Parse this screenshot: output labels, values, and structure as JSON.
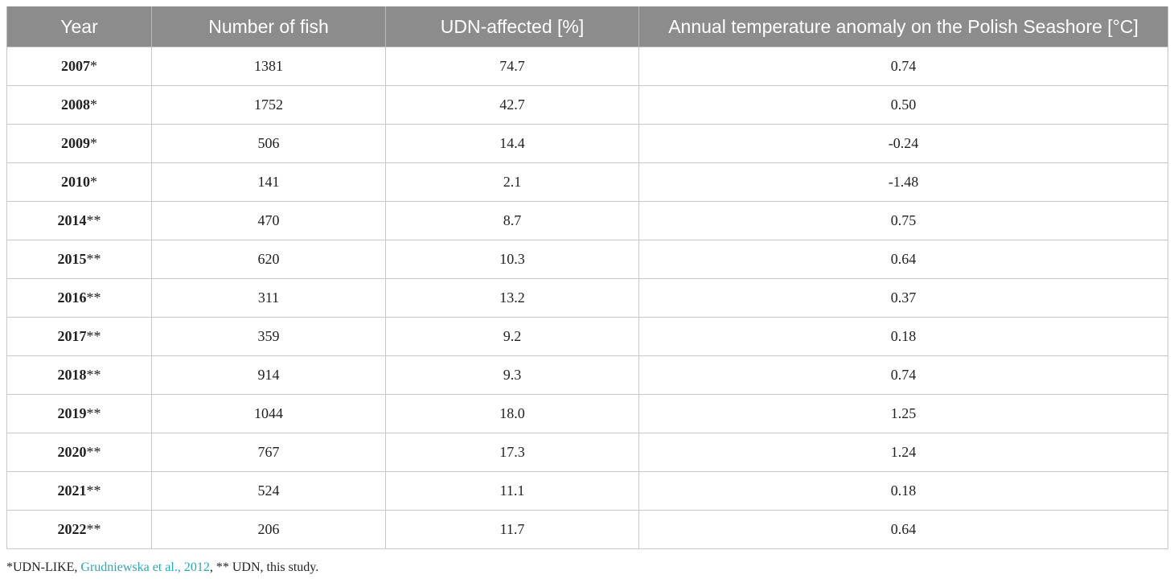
{
  "table": {
    "headers": [
      "Year",
      "Number of fish",
      "UDN-affected [%]",
      "Annual temperature anomaly on the Polish Seashore [°C]"
    ],
    "rows": [
      {
        "year": "2007",
        "mark": "*",
        "fish": "1381",
        "udn": "74.7",
        "temp": "0.74"
      },
      {
        "year": "2008",
        "mark": "*",
        "fish": "1752",
        "udn": "42.7",
        "temp": "0.50"
      },
      {
        "year": "2009",
        "mark": "*",
        "fish": "506",
        "udn": "14.4",
        "temp": "-0.24"
      },
      {
        "year": "2010",
        "mark": "*",
        "fish": "141",
        "udn": "2.1",
        "temp": "-1.48"
      },
      {
        "year": "2014",
        "mark": "**",
        "fish": "470",
        "udn": "8.7",
        "temp": "0.75"
      },
      {
        "year": "2015",
        "mark": "**",
        "fish": "620",
        "udn": "10.3",
        "temp": "0.64"
      },
      {
        "year": "2016",
        "mark": "**",
        "fish": "311",
        "udn": "13.2",
        "temp": "0.37"
      },
      {
        "year": "2017",
        "mark": "**",
        "fish": "359",
        "udn": "9.2",
        "temp": "0.18"
      },
      {
        "year": "2018",
        "mark": "**",
        "fish": "914",
        "udn": "9.3",
        "temp": "0.74"
      },
      {
        "year": "2019",
        "mark": "**",
        "fish": "1044",
        "udn": "18.0",
        "temp": "1.25"
      },
      {
        "year": "2020",
        "mark": "**",
        "fish": "767",
        "udn": "17.3",
        "temp": "1.24"
      },
      {
        "year": "2021",
        "mark": "**",
        "fish": "524",
        "udn": "11.1",
        "temp": "0.18"
      },
      {
        "year": "2022",
        "mark": "**",
        "fish": "206",
        "udn": "11.7",
        "temp": "0.64"
      }
    ]
  },
  "footnote": {
    "prefix": "*UDN-LIKE, ",
    "link_text": "Grudniewska et al., 2012",
    "suffix": ", ** UDN, this study."
  },
  "colors": {
    "header_bg": "#8c8c8c",
    "link": "#2aa7b5"
  }
}
